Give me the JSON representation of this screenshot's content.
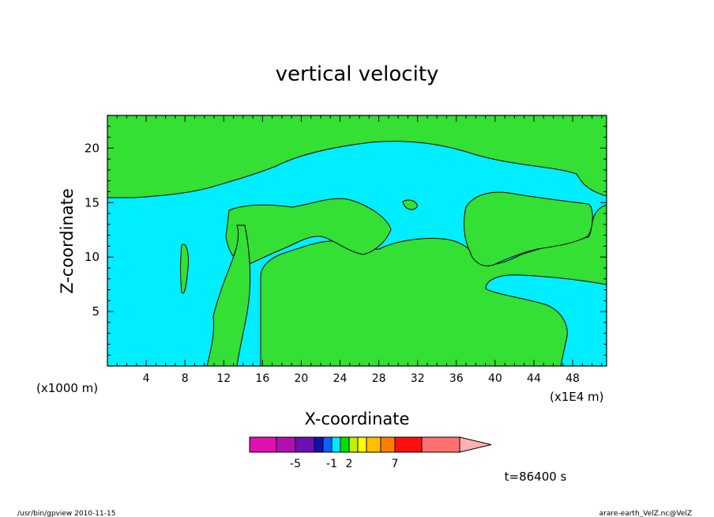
{
  "chart_data": {
    "type": "heatmap",
    "title": "vertical velocity",
    "xlabel": "X-coordinate",
    "ylabel": "Z-coordinate",
    "x_unit_left": "(x1000 m)",
    "x_unit_right": "(x1E4 m)",
    "xlim": [
      0,
      51.5
    ],
    "ylim": [
      0,
      23
    ],
    "x_ticks": [
      "4",
      "8",
      "12",
      "16",
      "20",
      "24",
      "28",
      "32",
      "36",
      "40",
      "44",
      "48"
    ],
    "y_ticks": [
      "5",
      "10",
      "15",
      "20"
    ],
    "colorbar": {
      "colors": [
        "#e010b0",
        "#b010b0",
        "#7010b0",
        "#1010b0",
        "#1060ff",
        "#00e8ff",
        "#00e000",
        "#c0f000",
        "#ffff00",
        "#ffc000",
        "#ff8000",
        "#ff1010",
        "#ff7070",
        "#ffb0b0"
      ],
      "labels": [
        "-5",
        "-1",
        "2",
        "7"
      ]
    },
    "regions": [
      {
        "level": "positive",
        "color": "#33e033"
      },
      {
        "level": "near-zero",
        "color": "#00eeff"
      }
    ],
    "time_label": "t=86400 s"
  },
  "footer": {
    "left": "/usr/bin/gpview   2010-11-15",
    "right": "arare-earth_VelZ.nc@VelZ"
  }
}
